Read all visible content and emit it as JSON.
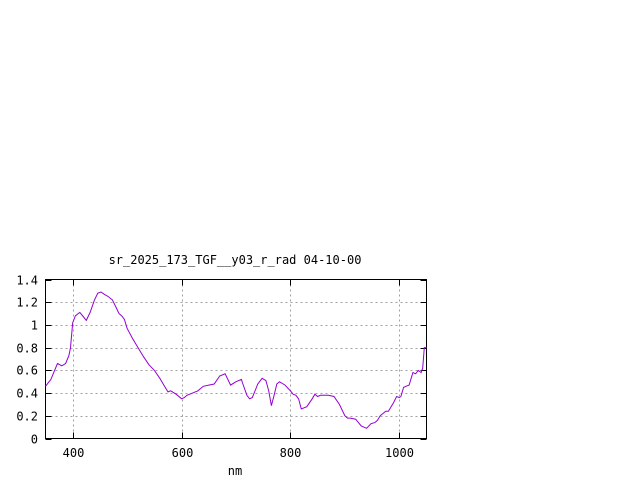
{
  "chart_data": {
    "type": "line",
    "title": "sr_2025_173_TGF__y03_r_rad 04-10-00",
    "xlabel": "nm",
    "ylabel": "",
    "xlim": [
      350,
      1050
    ],
    "ylim": [
      0,
      1.4
    ],
    "x_ticks": [
      400,
      600,
      800,
      1000
    ],
    "x_tick_labels": [
      "400",
      "600",
      "800",
      "1000"
    ],
    "y_ticks": [
      0,
      0.2,
      0.4,
      0.6,
      0.8,
      1,
      1.2,
      1.4
    ],
    "y_tick_labels": [
      "0",
      "0.2",
      "0.4",
      "0.6",
      "0.8",
      "1",
      "1.2",
      "1.4"
    ],
    "grid": true,
    "legend": false,
    "series": [
      {
        "color": "#9400d3",
        "x": [
          350,
          360,
          365,
          372,
          380,
          387,
          393,
          396,
          400,
          405,
          413,
          420,
          425,
          432,
          440,
          446,
          452,
          458,
          465,
          473,
          480,
          485,
          490,
          495,
          500,
          510,
          520,
          530,
          540,
          550,
          560,
          570,
          575,
          580,
          590,
          600,
          605,
          610,
          620,
          630,
          640,
          650,
          660,
          670,
          680,
          690,
          700,
          710,
          712,
          720,
          725,
          730,
          740,
          748,
          755,
          760,
          765,
          770,
          775,
          780,
          790,
          800,
          805,
          810,
          815,
          820,
          830,
          840,
          845,
          850,
          855,
          860,
          870,
          880,
          890,
          900,
          905,
          910,
          920,
          930,
          940,
          948,
          955,
          960,
          965,
          970,
          975,
          980,
          990,
          995,
          1000,
          1003,
          1008,
          1012,
          1018,
          1025,
          1030,
          1035,
          1040,
          1043,
          1046,
          1050
        ],
        "y": [
          0.46,
          0.52,
          0.58,
          0.66,
          0.64,
          0.66,
          0.73,
          0.8,
          1.02,
          1.08,
          1.11,
          1.07,
          1.04,
          1.11,
          1.22,
          1.28,
          1.29,
          1.27,
          1.25,
          1.22,
          1.15,
          1.1,
          1.08,
          1.05,
          0.97,
          0.88,
          0.8,
          0.72,
          0.65,
          0.6,
          0.53,
          0.45,
          0.41,
          0.42,
          0.39,
          0.35,
          0.36,
          0.38,
          0.4,
          0.42,
          0.46,
          0.47,
          0.48,
          0.55,
          0.57,
          0.47,
          0.5,
          0.52,
          0.49,
          0.38,
          0.35,
          0.36,
          0.48,
          0.53,
          0.51,
          0.42,
          0.29,
          0.38,
          0.48,
          0.5,
          0.47,
          0.42,
          0.39,
          0.38,
          0.35,
          0.26,
          0.28,
          0.35,
          0.39,
          0.37,
          0.38,
          0.38,
          0.38,
          0.37,
          0.3,
          0.2,
          0.18,
          0.18,
          0.17,
          0.11,
          0.09,
          0.13,
          0.14,
          0.16,
          0.2,
          0.22,
          0.24,
          0.24,
          0.32,
          0.37,
          0.36,
          0.37,
          0.45,
          0.46,
          0.47,
          0.58,
          0.57,
          0.6,
          0.58,
          0.62,
          0.8,
          0.8
        ]
      }
    ]
  }
}
